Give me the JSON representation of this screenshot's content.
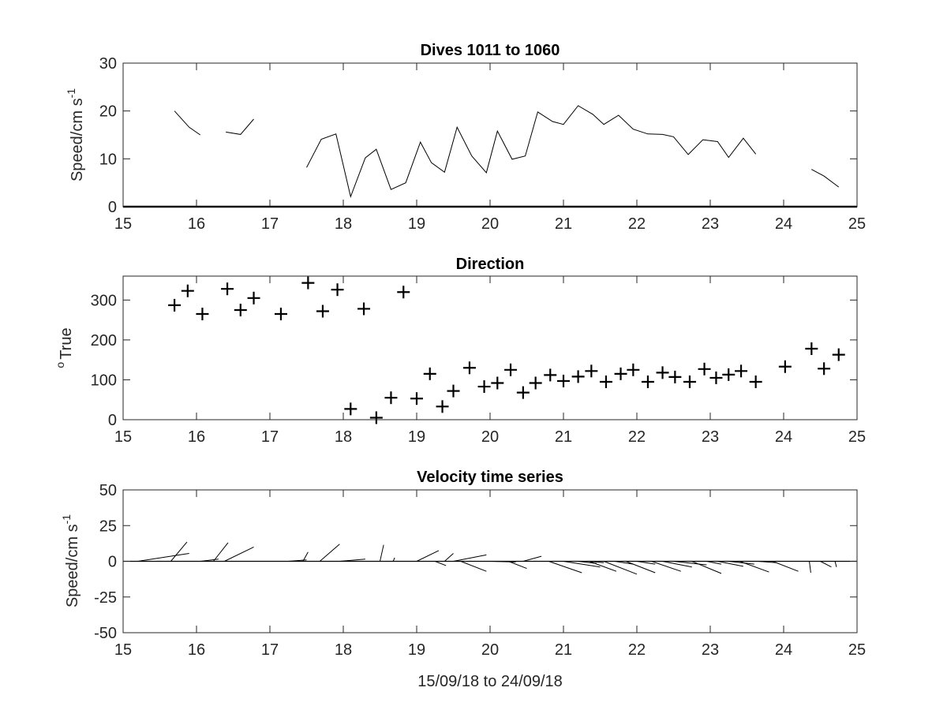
{
  "chart_data": [
    {
      "type": "line",
      "title": "Dives 1011 to 1060",
      "ylabel": "Speed/cm s",
      "ylabel_superscript": "-1",
      "xlim": [
        15,
        25
      ],
      "ylim": [
        0,
        30
      ],
      "xticks": [
        15,
        16,
        17,
        18,
        19,
        20,
        21,
        22,
        23,
        24,
        25
      ],
      "yticks": [
        0,
        10,
        20,
        30
      ],
      "grid": false,
      "segments": [
        [
          [
            15.7,
            20
          ],
          [
            15.9,
            16.6
          ],
          [
            16.05,
            15
          ]
        ],
        [
          [
            16.4,
            15.6
          ],
          [
            16.6,
            15.1
          ],
          [
            16.78,
            18.3
          ]
        ],
        [
          [
            17.5,
            8.2
          ],
          [
            17.7,
            14.1
          ],
          [
            17.9,
            15.2
          ],
          [
            18.1,
            2.1
          ],
          [
            18.3,
            10.2
          ],
          [
            18.45,
            12
          ],
          [
            18.65,
            3.6
          ],
          [
            18.85,
            5
          ],
          [
            19.05,
            13.5
          ],
          [
            19.2,
            9.2
          ],
          [
            19.38,
            7.2
          ],
          [
            19.55,
            16.6
          ],
          [
            19.75,
            10.6
          ],
          [
            19.95,
            7.1
          ],
          [
            20.1,
            15.8
          ],
          [
            20.3,
            9.9
          ],
          [
            20.48,
            10.6
          ],
          [
            20.65,
            19.8
          ],
          [
            20.85,
            17.8
          ],
          [
            21.0,
            17.2
          ],
          [
            21.2,
            21.1
          ],
          [
            21.4,
            19.3
          ],
          [
            21.55,
            17.2
          ],
          [
            21.75,
            19.1
          ],
          [
            21.95,
            16.2
          ],
          [
            22.15,
            15.2
          ],
          [
            22.35,
            15.1
          ],
          [
            22.5,
            14.6
          ],
          [
            22.7,
            10.9
          ],
          [
            22.9,
            14
          ],
          [
            23.1,
            13.6
          ],
          [
            23.25,
            10.3
          ],
          [
            23.45,
            14.3
          ],
          [
            23.62,
            11
          ]
        ],
        [
          [
            24.38,
            7.8
          ],
          [
            24.55,
            6.4
          ],
          [
            24.75,
            4.1
          ]
        ]
      ],
      "baseline": 0
    },
    {
      "type": "scatter",
      "title": "Direction",
      "ylabel": "True",
      "ylabel_prefix": "o",
      "xlim": [
        15,
        25
      ],
      "ylim": [
        0,
        360
      ],
      "xticks": [
        15,
        16,
        17,
        18,
        19,
        20,
        21,
        22,
        23,
        24,
        25
      ],
      "yticks": [
        0,
        100,
        200,
        300
      ],
      "grid": false,
      "marker": "+",
      "points": [
        [
          15.7,
          287
        ],
        [
          15.88,
          323
        ],
        [
          16.08,
          265
        ],
        [
          16.42,
          328
        ],
        [
          16.6,
          275
        ],
        [
          16.78,
          305
        ],
        [
          17.15,
          265
        ],
        [
          17.52,
          343
        ],
        [
          17.72,
          272
        ],
        [
          17.92,
          326
        ],
        [
          18.28,
          278
        ],
        [
          18.82,
          320
        ],
        [
          18.1,
          27
        ],
        [
          18.45,
          5
        ],
        [
          18.65,
          55
        ],
        [
          19.0,
          53
        ],
        [
          19.18,
          115
        ],
        [
          19.35,
          33
        ],
        [
          19.5,
          72
        ],
        [
          19.72,
          130
        ],
        [
          19.92,
          83
        ],
        [
          20.1,
          92
        ],
        [
          20.28,
          125
        ],
        [
          20.45,
          68
        ],
        [
          20.62,
          92
        ],
        [
          20.82,
          112
        ],
        [
          21.0,
          97
        ],
        [
          21.2,
          108
        ],
        [
          21.38,
          122
        ],
        [
          21.58,
          95
        ],
        [
          21.78,
          115
        ],
        [
          21.95,
          125
        ],
        [
          22.15,
          95
        ],
        [
          22.35,
          118
        ],
        [
          22.52,
          107
        ],
        [
          22.72,
          95
        ],
        [
          22.92,
          127
        ],
        [
          23.08,
          105
        ],
        [
          23.25,
          113
        ],
        [
          23.42,
          122
        ],
        [
          23.62,
          95
        ],
        [
          24.02,
          133
        ],
        [
          24.38,
          178
        ],
        [
          24.55,
          128
        ],
        [
          24.75,
          163
        ]
      ]
    },
    {
      "type": "quiver",
      "title": "Velocity time series",
      "ylabel": "Speed/cm s",
      "ylabel_superscript": "-1",
      "xlabel": "15/09/18 to 24/09/18",
      "xlim": [
        15,
        25
      ],
      "ylim": [
        -50,
        50
      ],
      "xticks": [
        15,
        16,
        17,
        18,
        19,
        20,
        21,
        22,
        23,
        24,
        25
      ],
      "yticks": [
        -50,
        -25,
        0,
        25,
        50
      ],
      "grid": false,
      "baseline": 0,
      "sticks": [
        [
          15.2,
          0,
          15.9,
          5.5
        ],
        [
          15.65,
          0,
          15.87,
          13.5
        ],
        [
          16.05,
          0,
          16.3,
          1.5
        ],
        [
          16.23,
          0,
          16.43,
          13
        ],
        [
          16.38,
          0,
          16.78,
          10
        ],
        [
          17.25,
          0,
          17.5,
          1
        ],
        [
          17.45,
          0,
          17.52,
          6.5
        ],
        [
          17.68,
          0,
          17.95,
          12
        ],
        [
          17.95,
          0,
          18.3,
          1.5
        ],
        [
          18.5,
          0,
          18.55,
          11.5
        ],
        [
          18.68,
          0,
          18.7,
          2.5
        ],
        [
          19.0,
          0,
          19.3,
          7.5
        ],
        [
          19.25,
          0,
          19.4,
          -3
        ],
        [
          19.38,
          0,
          19.5,
          5.5
        ],
        [
          19.5,
          0,
          19.95,
          4.5
        ],
        [
          19.6,
          0,
          19.95,
          -7
        ],
        [
          20.0,
          0,
          20.35,
          -0.5
        ],
        [
          20.25,
          0,
          20.5,
          -5
        ],
        [
          20.45,
          0,
          20.7,
          3.5
        ],
        [
          20.8,
          0,
          21.25,
          -8
        ],
        [
          21.0,
          0,
          21.5,
          -4
        ],
        [
          21.2,
          0,
          21.45,
          -1.5
        ],
        [
          21.35,
          0,
          21.72,
          -7
        ],
        [
          21.35,
          0,
          21.55,
          -1
        ],
        [
          21.55,
          0,
          22.0,
          -9
        ],
        [
          21.7,
          0,
          21.95,
          -2
        ],
        [
          21.85,
          0,
          22.25,
          -8
        ],
        [
          22.0,
          0,
          22.25,
          -2
        ],
        [
          22.2,
          0,
          22.6,
          -7
        ],
        [
          22.35,
          0,
          22.75,
          -4
        ],
        [
          22.5,
          0,
          22.95,
          -2.5
        ],
        [
          22.75,
          0,
          23.15,
          -8.5
        ],
        [
          22.95,
          0,
          23.15,
          -2
        ],
        [
          23.1,
          0,
          23.45,
          -3.5
        ],
        [
          23.25,
          0,
          23.6,
          -2
        ],
        [
          23.4,
          0,
          23.8,
          -7.5
        ],
        [
          23.65,
          0,
          23.9,
          -1
        ],
        [
          23.85,
          0,
          24.2,
          -7
        ],
        [
          24.35,
          0,
          24.37,
          -8
        ],
        [
          24.5,
          0,
          24.65,
          -4
        ],
        [
          24.7,
          0,
          24.72,
          -4
        ]
      ]
    }
  ]
}
